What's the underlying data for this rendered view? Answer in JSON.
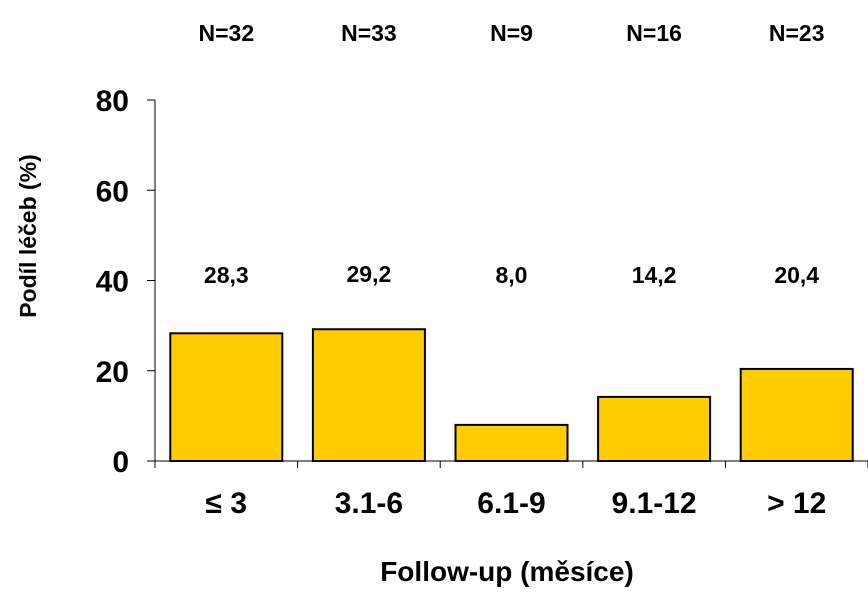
{
  "chart_data": {
    "type": "bar",
    "title": "",
    "xlabel": "Follow-up (měsíce)",
    "ylabel": "Podíl léčeb (%)",
    "ylim": [
      0,
      80
    ],
    "yticks": [
      "0",
      "20",
      "40",
      "60",
      "80"
    ],
    "categories": [
      "≤ 3",
      "3.1-6",
      "6.1-9",
      "9.1-12",
      "> 12"
    ],
    "values": [
      28.3,
      29.2,
      8.0,
      14.2,
      20.4
    ],
    "value_labels": [
      "28,3",
      "29,2",
      "8,0",
      "14,2",
      "20,4"
    ],
    "n_labels": [
      "N=32",
      "N=33",
      "N=9",
      "N=16",
      "N=23"
    ],
    "grid": false,
    "legend": "none",
    "bar_color": "#FFCC00",
    "bar_edge_color": "#000000"
  }
}
